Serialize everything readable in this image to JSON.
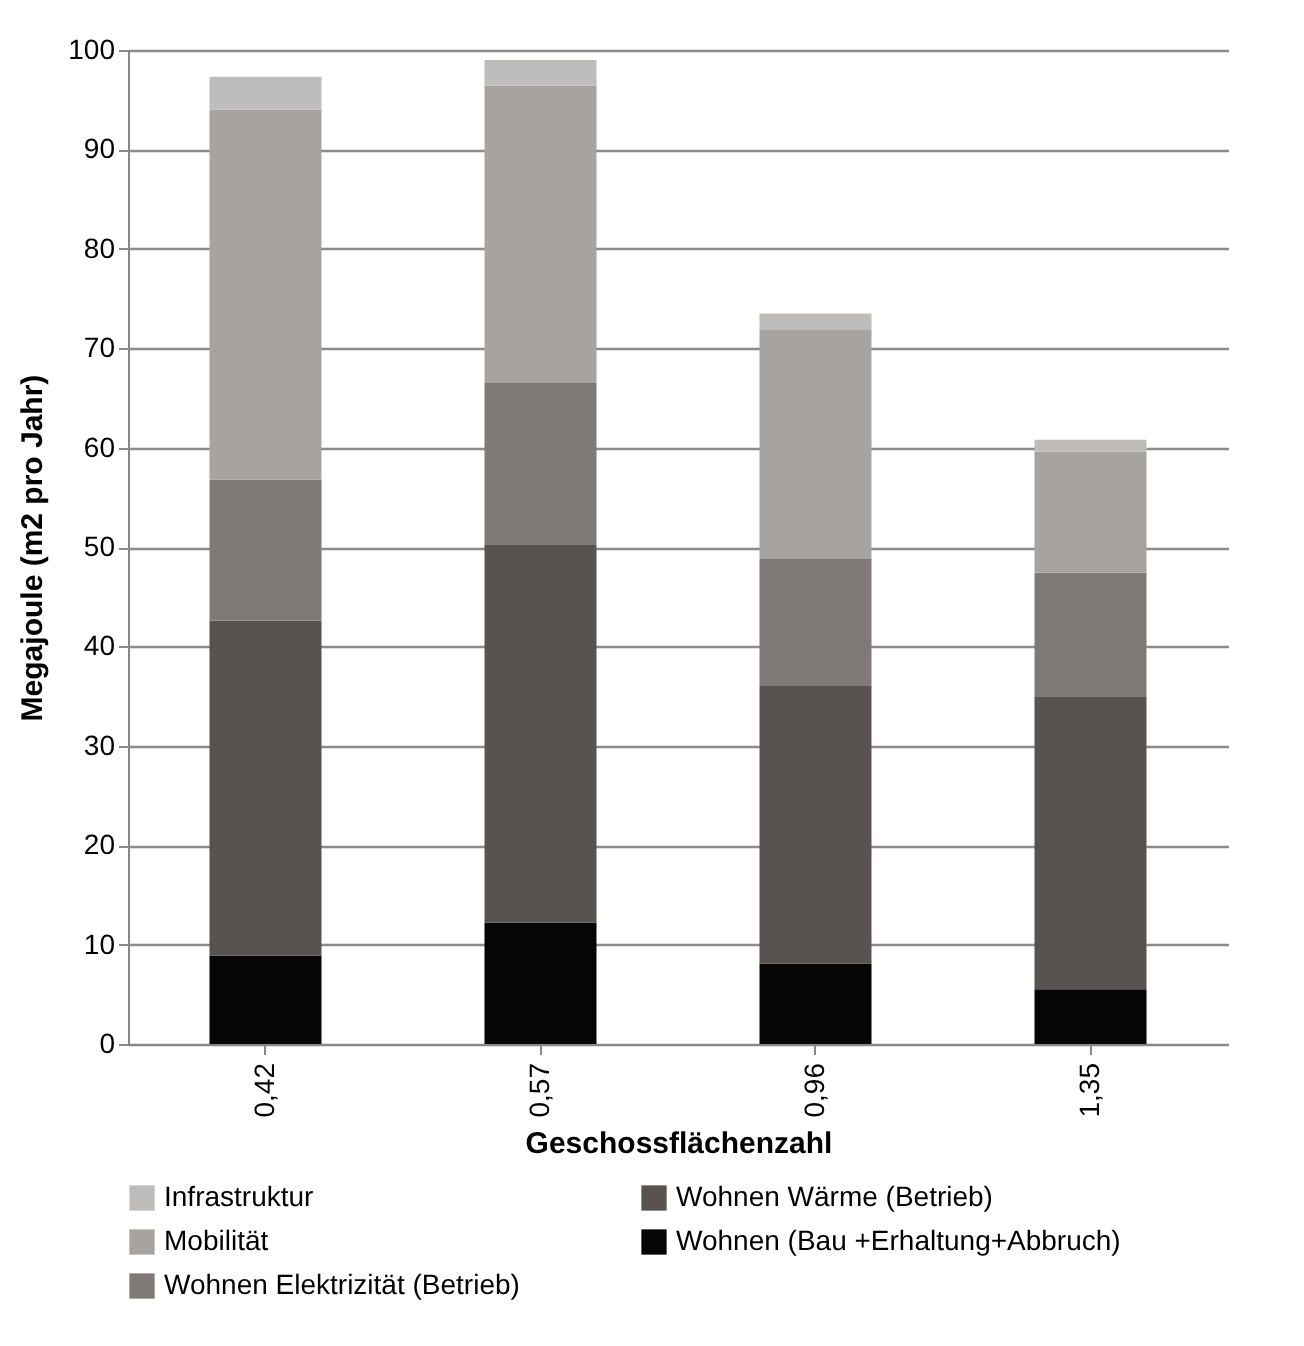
{
  "chart_data": {
    "type": "bar",
    "stacked": true,
    "xlabel": "Geschossflächenzahl",
    "ylabel": "Megajoule (m2 pro Jahr)",
    "categories": [
      "0,42",
      "0,57",
      "0,96",
      "1,35"
    ],
    "series": [
      {
        "name": "Wohnen (Bau +Erhaltung+Abbruch)",
        "color": "#050505",
        "values": [
          8.9,
          12.2,
          8.1,
          5.5
        ]
      },
      {
        "name": "Wohnen Wärme (Betrieb)",
        "color": "#585250",
        "values": [
          33.7,
          38.0,
          28.0,
          29.4
        ]
      },
      {
        "name": "Wohnen Elektrizität (Betrieb)",
        "color": "#7f7a78",
        "values": [
          14.2,
          16.3,
          12.7,
          12.5
        ]
      },
      {
        "name": "Mobilität",
        "color": "#a7a3a1",
        "values": [
          37.2,
          29.9,
          23.1,
          12.2
        ]
      },
      {
        "name": "Infrastruktur",
        "color": "#bfbdbb",
        "values": [
          3.3,
          2.6,
          1.6,
          1.2
        ]
      }
    ],
    "ylim": [
      0,
      100
    ],
    "yticks": [
      0,
      10,
      20,
      30,
      40,
      50,
      60,
      70,
      80,
      90,
      100
    ],
    "grid": "y",
    "legend": "bottom"
  }
}
